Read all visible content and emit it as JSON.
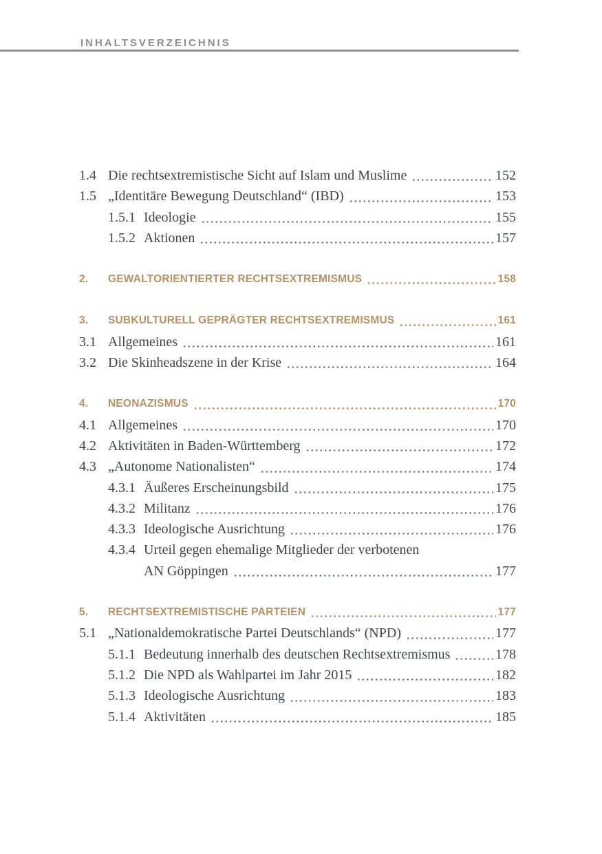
{
  "header": {
    "title": "INHALTSVERZEICHNIS"
  },
  "colors": {
    "accent_brown": "#b3926a",
    "header_gray": "#8c8c8c",
    "body_text": "#40454c",
    "background": "#ffffff"
  },
  "toc": {
    "entries": [
      {
        "level": 1,
        "number": "1.4",
        "title": "Die rechtsextremistische Sicht auf Islam und Muslime",
        "page": "152",
        "gap": false
      },
      {
        "level": 1,
        "number": "1.5",
        "title": "„Identitäre Bewegung Deutschland“ (IBD)",
        "page": "153",
        "gap": false
      },
      {
        "level": 2,
        "number": "1.5.1",
        "title": "Ideologie",
        "page": "155",
        "gap": false
      },
      {
        "level": 2,
        "number": "1.5.2",
        "title": "Aktionen",
        "page": "157",
        "gap": false
      },
      {
        "level": 0,
        "number": "2.",
        "title": "GEWALTORIENTIERTER RECHTSEXTREMISMUS",
        "page": "158",
        "gap": true
      },
      {
        "level": 0,
        "number": "3.",
        "title": "SUBKULTURELL GEPRÄGTER RECHTSEXTREMISMUS",
        "page": "161",
        "gap": true
      },
      {
        "level": 1,
        "number": "3.1",
        "title": "Allgemeines",
        "page": "161",
        "gap": false
      },
      {
        "level": 1,
        "number": "3.2",
        "title": "Die Skinheadszene in der Krise",
        "page": "164",
        "gap": false
      },
      {
        "level": 0,
        "number": "4.",
        "title": "NEONAZISMUS",
        "page": "170",
        "gap": true
      },
      {
        "level": 1,
        "number": "4.1",
        "title": "Allgemeines",
        "page": "170",
        "gap": false
      },
      {
        "level": 1,
        "number": "4.2",
        "title": "Aktivitäten in Baden-Württemberg",
        "page": "172",
        "gap": false
      },
      {
        "level": 1,
        "number": "4.3",
        "title": "„Autonome Nationalisten“",
        "page": "174",
        "gap": false
      },
      {
        "level": 2,
        "number": "4.3.1",
        "title": "Äußeres Erscheinungsbild",
        "page": "175",
        "gap": false
      },
      {
        "level": 2,
        "number": "4.3.2",
        "title": "Militanz",
        "page": "176",
        "gap": false
      },
      {
        "level": 2,
        "number": "4.3.3",
        "title": "Ideologische Ausrichtung",
        "page": "176",
        "gap": false
      },
      {
        "level": 2,
        "number": "4.3.4",
        "title": "Urteil gegen ehemalige Mitglieder der verbotenen",
        "title2": "AN Göppingen",
        "page": "177",
        "gap": false
      },
      {
        "level": 0,
        "number": "5.",
        "title": "RECHTSEXTREMISTISCHE PARTEIEN",
        "page": "177",
        "gap": true
      },
      {
        "level": 1,
        "number": "5.1",
        "title": "„Nationaldemokratische Partei Deutschlands“ (NPD)",
        "page": "177",
        "gap": false
      },
      {
        "level": 2,
        "number": "5.1.1",
        "title": "Bedeutung innerhalb des deutschen Rechtsextremismus",
        "page": "178",
        "gap": false
      },
      {
        "level": 2,
        "number": "5.1.2",
        "title": "Die NPD als Wahlpartei im Jahr 2015",
        "page": "182",
        "gap": false
      },
      {
        "level": 2,
        "number": "5.1.3",
        "title": "Ideologische Ausrichtung",
        "page": "183",
        "gap": false
      },
      {
        "level": 2,
        "number": "5.1.4",
        "title": "Aktivitäten",
        "page": "185",
        "gap": false
      }
    ]
  }
}
